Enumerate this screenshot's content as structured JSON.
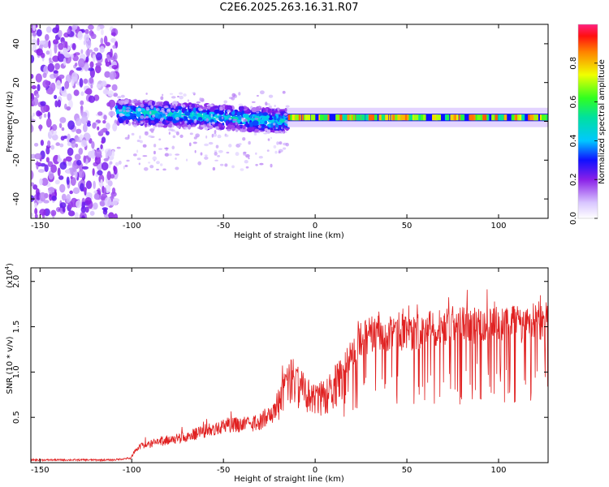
{
  "title": "C2E6.2025.263.16.31.R07",
  "colors": {
    "axis": "#000000",
    "snr_line": "#e02020",
    "ridge": "#e8185a",
    "bg": "#ffffff"
  },
  "chart_data": [
    {
      "type": "heatmap",
      "xlabel": "Height of straight line (km)",
      "ylabel": "Frequency (Hz)",
      "xlim": [
        -155,
        127
      ],
      "ylim": [
        -50,
        50
      ],
      "xticks": [
        -150,
        -100,
        -50,
        0,
        50,
        100
      ],
      "yticks": [
        -40,
        -20,
        0,
        20,
        40
      ],
      "xtick_labels": [
        "-150",
        "-100",
        "-50",
        "0",
        "50",
        "100"
      ],
      "ytick_labels": [
        "-40",
        "-20",
        "0",
        "20",
        "40"
      ],
      "regions": [
        {
          "name": "noise",
          "x": [
            -155,
            -108
          ],
          "freq": [
            -50,
            50
          ],
          "amplitude": 0.1
        },
        {
          "name": "broad-signal",
          "x": [
            -108,
            -15
          ],
          "freq_center": [
            5,
            0
          ],
          "freq_halfwidth": 6,
          "amplitude": 0.45
        },
        {
          "name": "narrow-line",
          "x": [
            -15,
            127
          ],
          "freq_center": 2,
          "freq_halfwidth": 1.5,
          "amplitude": 0.9
        }
      ],
      "colorbar": {
        "label": "Normalized spectral amplitude",
        "range": [
          0,
          1
        ],
        "ticks": [
          0.0,
          0.2,
          0.4,
          0.6,
          0.8
        ],
        "tick_labels": [
          "0.0",
          "0.2",
          "0.4",
          "0.6",
          "0.8"
        ]
      }
    },
    {
      "type": "line",
      "xlabel": "Height of straight line (km)",
      "ylabel": "SNR (10 * v/v)",
      "multiplier": "(x10",
      "multiplier_exp": "4",
      "xlim": [
        -155,
        127
      ],
      "ylim": [
        0,
        2.15
      ],
      "xticks": [
        -150,
        -100,
        -50,
        0,
        50,
        100
      ],
      "yticks": [
        0.5,
        1.0,
        1.5,
        2.0
      ],
      "xtick_labels": [
        "-150",
        "-100",
        "-50",
        "0",
        "50",
        "100"
      ],
      "ytick_labels": [
        "0.5",
        "1.0",
        "1.5",
        "2.0"
      ],
      "series": [
        {
          "name": "SNR",
          "envelope_x": [
            -155,
            -110,
            -101,
            -97,
            -90,
            -80,
            -70,
            -60,
            -50,
            -40,
            -30,
            -22,
            -17,
            -13,
            -10,
            -5,
            0,
            5,
            10,
            15,
            20,
            25,
            30,
            35,
            40,
            50,
            60,
            70,
            80,
            90,
            100,
            110,
            120,
            127
          ],
          "envelope_y": [
            0.03,
            0.03,
            0.05,
            0.2,
            0.25,
            0.3,
            0.35,
            0.42,
            0.5,
            0.5,
            0.55,
            0.7,
            1.0,
            1.2,
            1.1,
            0.95,
            0.85,
            0.95,
            1.05,
            1.2,
            1.4,
            1.55,
            1.62,
            1.65,
            1.6,
            1.62,
            1.68,
            1.72,
            1.73,
            1.72,
            1.72,
            1.75,
            1.78,
            1.78
          ]
        }
      ]
    }
  ]
}
